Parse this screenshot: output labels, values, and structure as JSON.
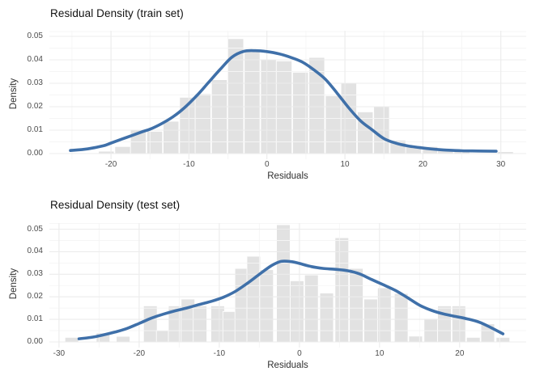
{
  "colors": {
    "background": "#ffffff",
    "curve": "#3f70a9",
    "bar_fill": "#e2e2e2",
    "bar_edge": "#ffffff",
    "grid_major": "#ececec",
    "grid_minor": "#f5f5f5",
    "title_text": "#111111",
    "tick_text": "#4d4d4d",
    "axis_title_text": "#2f2f2f"
  },
  "chart_data": [
    {
      "type": "bar",
      "subtype": "histogram-with-density-line",
      "title": "Residual Density (train set)",
      "xlabel": "Residuals",
      "ylabel": "Density",
      "legend": "none",
      "grid": "on",
      "xlim": [
        -27.9,
        33.25
      ],
      "ylim": [
        -0.00241,
        0.05241
      ],
      "x_ticks": [
        -20,
        -10,
        0,
        10,
        20,
        30
      ],
      "x_tick_labels": [
        "-20",
        "-10",
        "0",
        "10",
        "20",
        "30"
      ],
      "x_minor": [
        -25,
        -15,
        -5,
        5,
        15,
        25
      ],
      "y_ticks": [
        0,
        0.01,
        0.02,
        0.03,
        0.04,
        0.05
      ],
      "y_tick_labels": [
        "0.00",
        "0.01",
        "0.02",
        "0.03",
        "0.04",
        "0.05"
      ],
      "y_minor": [
        0.005,
        0.015,
        0.025,
        0.035,
        0.045,
        0.052
      ],
      "bin_width": 2.0,
      "bars": [
        [
          -20.6,
          0.001
        ],
        [
          -18.5,
          0.003
        ],
        [
          -16.5,
          0.01
        ],
        [
          -14.4,
          0.0095
        ],
        [
          -12.3,
          0.0138
        ],
        [
          -10.2,
          0.024
        ],
        [
          -8.2,
          0.0255
        ],
        [
          -6.1,
          0.0315
        ],
        [
          -4.0,
          0.049
        ],
        [
          -1.9,
          0.0437
        ],
        [
          0.2,
          0.0402
        ],
        [
          2.2,
          0.0395
        ],
        [
          4.3,
          0.0347
        ],
        [
          6.4,
          0.041
        ],
        [
          8.5,
          0.0247
        ],
        [
          10.5,
          0.0301
        ],
        [
          12.6,
          0.0178
        ],
        [
          14.7,
          0.0203
        ],
        [
          16.8,
          0.0057
        ],
        [
          18.8,
          0.0034
        ],
        [
          20.9,
          0.003
        ],
        [
          22.9,
          0.0014
        ],
        [
          25.0,
          0.0012
        ],
        [
          30.6,
          0.0008
        ]
      ],
      "density_curve": [
        [
          -25.2,
          0.0013
        ],
        [
          -23,
          0.002
        ],
        [
          -21,
          0.0033
        ],
        [
          -20,
          0.0045
        ],
        [
          -18,
          0.0069
        ],
        [
          -16,
          0.0093
        ],
        [
          -15,
          0.0104
        ],
        [
          -13.5,
          0.0128
        ],
        [
          -12,
          0.0158
        ],
        [
          -10.5,
          0.0198
        ],
        [
          -9,
          0.0247
        ],
        [
          -7.5,
          0.0303
        ],
        [
          -6,
          0.0359
        ],
        [
          -4.5,
          0.0411
        ],
        [
          -3,
          0.0436
        ],
        [
          -1.5,
          0.0439
        ],
        [
          0,
          0.0435
        ],
        [
          1.5,
          0.0426
        ],
        [
          3,
          0.0411
        ],
        [
          4.5,
          0.0391
        ],
        [
          6,
          0.0358
        ],
        [
          7.5,
          0.0317
        ],
        [
          9,
          0.0258
        ],
        [
          10.5,
          0.0195
        ],
        [
          12,
          0.014
        ],
        [
          13.5,
          0.0101
        ],
        [
          15,
          0.0064
        ],
        [
          16.5,
          0.0045
        ],
        [
          18,
          0.0033
        ],
        [
          19.5,
          0.0026
        ],
        [
          21,
          0.002
        ],
        [
          23,
          0.0015
        ],
        [
          25,
          0.0012
        ],
        [
          27,
          0.0011
        ],
        [
          29.4,
          0.001
        ]
      ]
    },
    {
      "type": "bar",
      "subtype": "histogram-with-density-line",
      "title": "Residual Density (test set)",
      "xlabel": "Residuals",
      "ylabel": "Density",
      "legend": "none",
      "grid": "on",
      "xlim": [
        -31.2,
        28.3
      ],
      "ylim": [
        -0.0025,
        0.0527
      ],
      "x_ticks": [
        -30,
        -20,
        -10,
        0,
        10,
        20
      ],
      "x_tick_labels": [
        "-30",
        "-20",
        "-10",
        "0",
        "10",
        "20"
      ],
      "x_minor": [
        -25,
        -15,
        -5,
        5,
        15,
        25
      ],
      "y_ticks": [
        0,
        0.01,
        0.02,
        0.03,
        0.04,
        0.05
      ],
      "y_tick_labels": [
        "0.00",
        "0.01",
        "0.02",
        "0.03",
        "0.04",
        "0.05"
      ],
      "y_minor": [
        0.005,
        0.015,
        0.025,
        0.035,
        0.045,
        0.0525
      ],
      "bin_width": 1.7,
      "bars": [
        [
          -28.4,
          0.002
        ],
        [
          -24.5,
          0.004
        ],
        [
          -22.0,
          0.0025
        ],
        [
          -18.6,
          0.016
        ],
        [
          -17.0,
          0.005
        ],
        [
          -15.5,
          0.016
        ],
        [
          -13.9,
          0.019
        ],
        [
          -12.4,
          0.016
        ],
        [
          -10.2,
          0.016
        ],
        [
          -8.7,
          0.0135
        ],
        [
          -7.2,
          0.0326
        ],
        [
          -5.7,
          0.038
        ],
        [
          -4.1,
          0.032
        ],
        [
          -2.0,
          0.052
        ],
        [
          -0.3,
          0.0271
        ],
        [
          1.5,
          0.0297
        ],
        [
          3.4,
          0.0217
        ],
        [
          5.3,
          0.0462
        ],
        [
          7.1,
          0.0326
        ],
        [
          8.9,
          0.019
        ],
        [
          10.6,
          0.024
        ],
        [
          12.7,
          0.0215
        ],
        [
          14.5,
          0.0026
        ],
        [
          16.4,
          0.0104
        ],
        [
          18.1,
          0.016
        ],
        [
          19.9,
          0.016
        ],
        [
          21.7,
          0.002
        ],
        [
          23.5,
          0.008
        ],
        [
          25.4,
          0.002
        ]
      ],
      "density_curve": [
        [
          -27.5,
          0.0014
        ],
        [
          -26,
          0.002
        ],
        [
          -24.5,
          0.0031
        ],
        [
          -23,
          0.0044
        ],
        [
          -21.5,
          0.006
        ],
        [
          -20,
          0.0082
        ],
        [
          -18.5,
          0.0105
        ],
        [
          -17,
          0.0123
        ],
        [
          -15.5,
          0.0138
        ],
        [
          -14,
          0.0151
        ],
        [
          -12.5,
          0.0166
        ],
        [
          -11,
          0.018
        ],
        [
          -9.5,
          0.0198
        ],
        [
          -8,
          0.0224
        ],
        [
          -6.5,
          0.026
        ],
        [
          -5,
          0.03
        ],
        [
          -3.5,
          0.0338
        ],
        [
          -2.3,
          0.0357
        ],
        [
          -1,
          0.0356
        ],
        [
          0,
          0.0348
        ],
        [
          1.5,
          0.0334
        ],
        [
          3,
          0.0326
        ],
        [
          4.5,
          0.0322
        ],
        [
          6,
          0.0316
        ],
        [
          7.5,
          0.0302
        ],
        [
          9,
          0.0277
        ],
        [
          10.5,
          0.0253
        ],
        [
          12,
          0.0228
        ],
        [
          13.5,
          0.0196
        ],
        [
          15,
          0.0163
        ],
        [
          16.5,
          0.014
        ],
        [
          18,
          0.0124
        ],
        [
          19.5,
          0.0113
        ],
        [
          21,
          0.0102
        ],
        [
          22.5,
          0.0087
        ],
        [
          24,
          0.0062
        ],
        [
          25.4,
          0.0036
        ]
      ]
    }
  ]
}
